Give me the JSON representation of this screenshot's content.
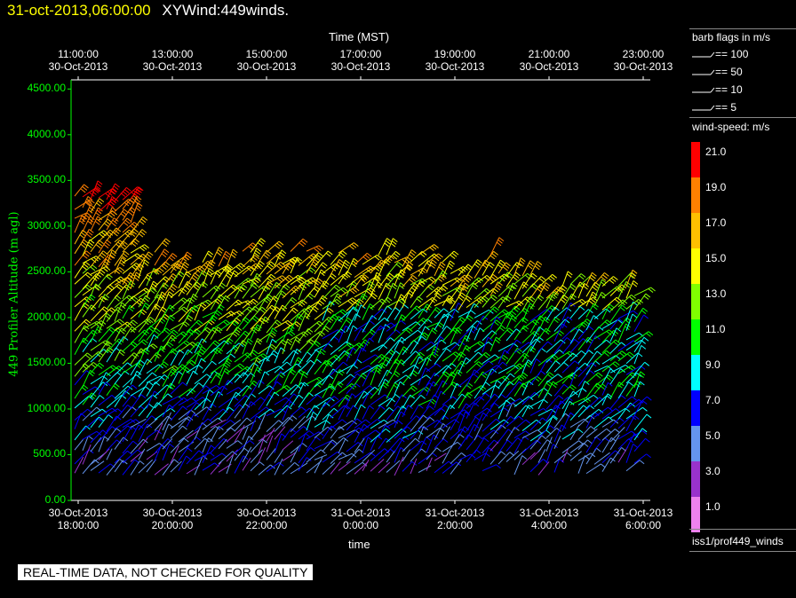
{
  "header": {
    "date_label": "31-oct-2013,06:00:00",
    "plot_name": "XYWind:449winds."
  },
  "chart_data": {
    "type": "scatter",
    "top_axis_title": "Time (MST)",
    "top_ticks": [
      {
        "time": "11:00:00",
        "date": "30-Oct-2013"
      },
      {
        "time": "13:00:00",
        "date": "30-Oct-2013"
      },
      {
        "time": "15:00:00",
        "date": "30-Oct-2013"
      },
      {
        "time": "17:00:00",
        "date": "30-Oct-2013"
      },
      {
        "time": "19:00:00",
        "date": "30-Oct-2013"
      },
      {
        "time": "21:00:00",
        "date": "30-Oct-2013"
      },
      {
        "time": "23:00:00",
        "date": "30-Oct-2013"
      }
    ],
    "bottom_ticks": [
      {
        "date": "30-Oct-2013",
        "time": "18:00:00"
      },
      {
        "date": "30-Oct-2013",
        "time": "20:00:00"
      },
      {
        "date": "30-Oct-2013",
        "time": "22:00:00"
      },
      {
        "date": "31-Oct-2013",
        "time": "0:00:00"
      },
      {
        "date": "31-Oct-2013",
        "time": "2:00:00"
      },
      {
        "date": "31-Oct-2013",
        "time": "4:00:00"
      },
      {
        "date": "31-Oct-2013",
        "time": "6:00:00"
      }
    ],
    "xlabel": "time",
    "ylabel": "449 Profiler Altitude (m agl)",
    "ylim": [
      0,
      4600
    ],
    "y_ticks": [
      "0.00",
      "500.00",
      "1000.00",
      "1500.00",
      "2000.00",
      "2500.00",
      "3000.00",
      "3500.00",
      "4000.00",
      "4500.00"
    ],
    "levels_m": [
      300,
      420,
      540,
      660,
      780,
      900,
      1020,
      1140,
      1260,
      1380,
      1500,
      1620,
      1740,
      1860,
      1980,
      2100,
      2220,
      2340,
      2460,
      2580,
      2700,
      2820,
      2940,
      3060,
      3180,
      3300
    ]
  },
  "legend": {
    "barb_title": "barb flags in m/s",
    "barbs": [
      "== 100",
      "== 50",
      "== 10",
      "== 5"
    ],
    "speed_title": "wind-speed: m/s",
    "speed_scale": [
      {
        "label": "21.0",
        "color": "#ff0000"
      },
      {
        "label": "19.0",
        "color": "#ff8000"
      },
      {
        "label": "17.0",
        "color": "#ffc000"
      },
      {
        "label": "15.0",
        "color": "#ffff00"
      },
      {
        "label": "13.0",
        "color": "#80ff00"
      },
      {
        "label": "11.0",
        "color": "#00ff00"
      },
      {
        "label": "9.0",
        "color": "#00ffff"
      },
      {
        "label": "7.0",
        "color": "#0000ff"
      },
      {
        "label": "5.0",
        "color": "#6495ed"
      },
      {
        "label": "3.0",
        "color": "#9932cc"
      },
      {
        "label": "1.0",
        "color": "#ee82ee"
      }
    ],
    "source": "iss1/prof449_winds"
  },
  "footer": {
    "quality_note": "REAL-TIME DATA, NOT CHECKED FOR QUALITY"
  }
}
